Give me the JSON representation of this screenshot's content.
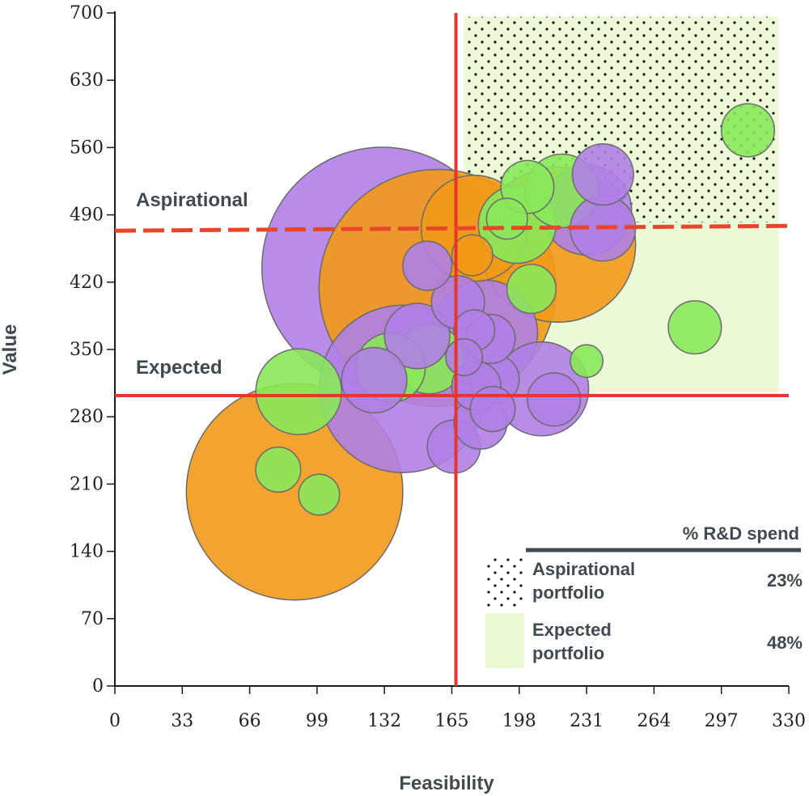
{
  "chart_data": {
    "type": "scatter",
    "subtype": "bubble",
    "title": "",
    "xlabel": "Feasibility",
    "ylabel": "Value",
    "xlim": [
      0,
      330
    ],
    "ylim": [
      0,
      700
    ],
    "xticks": [
      0,
      33,
      66,
      99,
      132,
      165,
      198,
      231,
      264,
      297,
      330
    ],
    "yticks": [
      0,
      70,
      140,
      210,
      280,
      350,
      420,
      490,
      560,
      630,
      700
    ],
    "grid": false,
    "thresholds": {
      "vertical_x": 167,
      "expected_y": 302,
      "aspirational_y": 476
    },
    "regions": [
      {
        "name": "aspirational",
        "x0": 171,
        "x1": 325,
        "y0": 482,
        "y1": 696,
        "fill": "#ebf9d6",
        "pattern": "dots"
      },
      {
        "name": "expected",
        "x0": 171,
        "x1": 325,
        "y0": 304,
        "y1": 482,
        "fill": "#ebf9d6",
        "pattern": "none"
      }
    ],
    "annotations": [
      {
        "text": "Aspirational",
        "x": 10,
        "y": 500
      },
      {
        "text": "Expected",
        "x": 10,
        "y": 325
      }
    ],
    "series": [
      {
        "name": "purple",
        "color": "#b07fe6",
        "points": [
          {
            "x": 131,
            "y": 435,
            "r": 59
          },
          {
            "x": 141,
            "y": 309,
            "r": 41
          },
          {
            "x": 209,
            "y": 309,
            "r": 23
          },
          {
            "x": 181,
            "y": 367,
            "r": 26
          },
          {
            "x": 231,
            "y": 495,
            "r": 22
          },
          {
            "x": 239,
            "y": 532,
            "r": 15
          },
          {
            "x": 239,
            "y": 476,
            "r": 16
          },
          {
            "x": 148,
            "y": 364,
            "r": 16
          },
          {
            "x": 127,
            "y": 318,
            "r": 16
          },
          {
            "x": 153,
            "y": 437,
            "r": 12
          },
          {
            "x": 168,
            "y": 399,
            "r": 13
          },
          {
            "x": 166,
            "y": 249,
            "r": 13
          },
          {
            "x": 179,
            "y": 274,
            "r": 13
          },
          {
            "x": 185,
            "y": 288,
            "r": 11
          },
          {
            "x": 186,
            "y": 319,
            "r": 12
          },
          {
            "x": 177,
            "y": 312,
            "r": 12
          },
          {
            "x": 215,
            "y": 298,
            "r": 13
          },
          {
            "x": 184,
            "y": 361,
            "r": 12
          },
          {
            "x": 176,
            "y": 370,
            "r": 10
          },
          {
            "x": 171,
            "y": 342,
            "r": 9
          }
        ]
      },
      {
        "name": "orange",
        "color": "#f29918",
        "points": [
          {
            "x": 158,
            "y": 414,
            "r": 58
          },
          {
            "x": 88,
            "y": 202,
            "r": 53
          },
          {
            "x": 217,
            "y": 459,
            "r": 38
          },
          {
            "x": 176,
            "y": 476,
            "r": 26
          },
          {
            "x": 175,
            "y": 448,
            "r": 10
          }
        ]
      },
      {
        "name": "green",
        "color": "#8ae85a",
        "points": [
          {
            "x": 310,
            "y": 578,
            "r": 13
          },
          {
            "x": 284,
            "y": 373,
            "r": 13
          },
          {
            "x": 202,
            "y": 519,
            "r": 13
          },
          {
            "x": 219,
            "y": 515,
            "r": 18
          },
          {
            "x": 197,
            "y": 480,
            "r": 19
          },
          {
            "x": 192,
            "y": 486,
            "r": 10
          },
          {
            "x": 204,
            "y": 413,
            "r": 12
          },
          {
            "x": 231,
            "y": 338,
            "r": 8
          },
          {
            "x": 154,
            "y": 340,
            "r": 17
          },
          {
            "x": 135,
            "y": 331,
            "r": 17
          },
          {
            "x": 90,
            "y": 306,
            "r": 21
          },
          {
            "x": 80,
            "y": 225,
            "r": 11
          },
          {
            "x": 100,
            "y": 199,
            "r": 10
          }
        ]
      }
    ],
    "legend": {
      "position": "bottom-right",
      "header": "% R&D spend",
      "items": [
        {
          "pattern": "dots",
          "line1": "Aspirational",
          "line2": "portfolio",
          "value": "23%"
        },
        {
          "pattern": "solid",
          "color": "#ebf9d6",
          "line1": "Expected",
          "line2": "portfolio",
          "value": "48%"
        }
      ]
    }
  },
  "colors": {
    "threshold": "#e8342a",
    "threshold_dashed": "#e8452a",
    "axis": "#1a1a1a",
    "region_fill": "#ebf9d6",
    "text": "#3f4a52"
  }
}
